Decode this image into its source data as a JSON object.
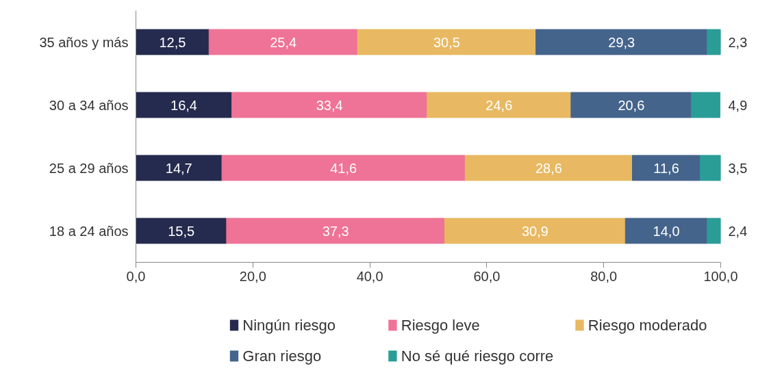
{
  "chart_data": {
    "type": "bar",
    "orientation": "horizontal",
    "stacked": true,
    "categories": [
      "35 años y más",
      "30 a 34 años",
      "25 a 29 años",
      "18 a 24 años"
    ],
    "series": [
      {
        "name": "Ningún riesgo",
        "color": "#252b4e",
        "values": [
          12.5,
          16.4,
          14.7,
          15.5
        ],
        "value_labels": [
          "12,5",
          "16,4",
          "14,7",
          "15,5"
        ]
      },
      {
        "name": "Riesgo leve",
        "color": "#ee7396",
        "values": [
          25.4,
          33.4,
          41.6,
          37.3
        ],
        "value_labels": [
          "25,4",
          "33,4",
          "41,6",
          "37,3"
        ]
      },
      {
        "name": "Riesgo moderado",
        "color": "#e8b962",
        "values": [
          30.5,
          24.6,
          28.6,
          30.9
        ],
        "value_labels": [
          "30,5",
          "24,6",
          "28,6",
          "30,9"
        ]
      },
      {
        "name": "Gran riesgo",
        "color": "#45648c",
        "values": [
          29.3,
          20.6,
          11.6,
          14.0
        ],
        "value_labels": [
          "29,3",
          "20,6",
          "11,6",
          "14,0"
        ]
      },
      {
        "name": "No sé qué riesgo corre",
        "color": "#2a9d96",
        "values": [
          2.3,
          4.9,
          3.5,
          2.4
        ],
        "value_labels": [
          "2,3",
          "4,9",
          "3,5",
          "2,4"
        ]
      }
    ],
    "xlim": [
      0,
      100
    ],
    "xticks": [
      {
        "value": 0,
        "label": "0,0"
      },
      {
        "value": 20,
        "label": "20,0"
      },
      {
        "value": 40,
        "label": "40,0"
      },
      {
        "value": 60,
        "label": "60,0"
      },
      {
        "value": 80,
        "label": "80,0"
      },
      {
        "value": 100,
        "label": "100,0"
      }
    ],
    "grid": false,
    "legend": "bottom"
  }
}
